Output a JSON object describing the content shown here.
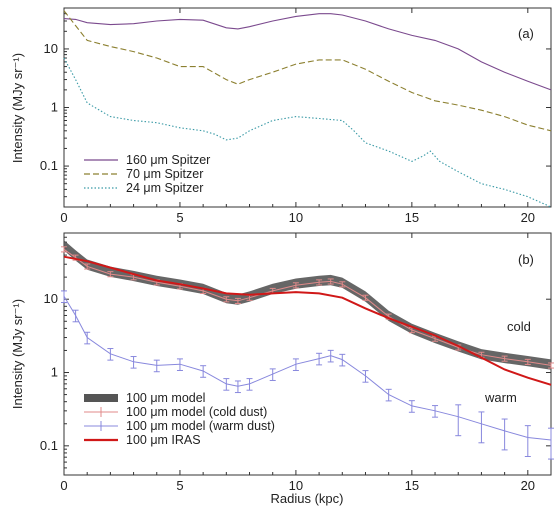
{
  "chart_data": [
    {
      "id": "a",
      "type": "line",
      "panel_label": "(a)",
      "ylabel": "Intensity (MJy sr⁻¹)",
      "xlabel": "",
      "xlim": [
        0,
        21
      ],
      "ylim": [
        0.02,
        50
      ],
      "yscale": "log",
      "xticks": [
        "0",
        "5",
        "10",
        "15",
        "20"
      ],
      "yticks": [
        "0.1",
        "1",
        "10"
      ],
      "legend_position": "bottom-left",
      "series": [
        {
          "name": "160 μm Spitzer",
          "style": "solid",
          "color": "#7b4a8e",
          "x": [
            0,
            0.5,
            1,
            2,
            3,
            4,
            5,
            6,
            7,
            7.5,
            8,
            9,
            10,
            11,
            11.5,
            12,
            13,
            14,
            15,
            16,
            17,
            18,
            19,
            20,
            21
          ],
          "y": [
            33,
            32,
            28,
            26,
            27,
            30,
            32,
            31,
            23,
            22,
            24,
            30,
            36,
            40,
            40,
            38,
            30,
            22,
            17,
            14,
            10,
            6,
            4,
            2.8,
            2.0
          ]
        },
        {
          "name": "70 μm Spitzer",
          "style": "dashed",
          "color": "#8c8030",
          "x": [
            0,
            0.5,
            1,
            2,
            3,
            4,
            5,
            6,
            7,
            7.5,
            8,
            9,
            10,
            11,
            12,
            13,
            14,
            15,
            16,
            17,
            18,
            19,
            20,
            21
          ],
          "y": [
            45,
            25,
            14,
            11,
            9,
            7,
            5,
            5,
            3,
            2.5,
            3,
            4,
            5.5,
            6.5,
            6.5,
            4.5,
            2.8,
            1.8,
            1.3,
            1.1,
            0.9,
            0.7,
            0.5,
            0.4
          ]
        },
        {
          "name": "24 μm Spitzer",
          "style": "dotted",
          "color": "#3a9aa6",
          "x": [
            0,
            0.5,
            1,
            2,
            3,
            4,
            5,
            6,
            6.5,
            7,
            7.5,
            8,
            9,
            10,
            11,
            12,
            12.5,
            13,
            14,
            15,
            15.5,
            15.8,
            16.2,
            17,
            18,
            19,
            20,
            21
          ],
          "y": [
            7,
            3,
            1.2,
            0.7,
            0.6,
            0.55,
            0.45,
            0.4,
            0.35,
            0.28,
            0.3,
            0.4,
            0.6,
            0.7,
            0.65,
            0.6,
            0.4,
            0.25,
            0.18,
            0.12,
            0.15,
            0.18,
            0.12,
            0.08,
            0.05,
            0.04,
            0.03,
            0.02
          ]
        }
      ]
    },
    {
      "id": "b",
      "type": "line",
      "panel_label": "(b)",
      "ylabel": "Intensity (MJy sr⁻¹)",
      "xlabel": "Radius (kpc)",
      "xlim": [
        0,
        21
      ],
      "ylim": [
        0.04,
        80
      ],
      "yscale": "log",
      "xticks": [
        "0",
        "5",
        "10",
        "15",
        "20"
      ],
      "yticks": [
        "0.1",
        "1",
        "10"
      ],
      "legend_position": "bottom-left",
      "annotations": [
        "cold",
        "warm"
      ],
      "series": [
        {
          "name": "100 μm model",
          "style": "band",
          "color": "#555555",
          "x": [
            0,
            0.5,
            1,
            2,
            3,
            4,
            5,
            6,
            7,
            7.5,
            8,
            9,
            10,
            11,
            11.5,
            12,
            13,
            14,
            15,
            16,
            17,
            18,
            19,
            20,
            21
          ],
          "y": [
            55,
            40,
            30,
            24,
            21,
            18,
            16,
            14,
            10.5,
            10,
            11,
            14,
            16.5,
            18,
            18.5,
            17,
            11,
            6,
            4,
            3,
            2.3,
            1.8,
            1.6,
            1.45,
            1.3
          ],
          "err_frac": 0.16
        },
        {
          "name": "100 μm model (cold dust)",
          "style": "errorbar",
          "color": "#e08a8a",
          "x": [
            0,
            0.5,
            1,
            2,
            3,
            4,
            5,
            6,
            7,
            7.5,
            8,
            9,
            10,
            11,
            11.5,
            12,
            13,
            14,
            15,
            16,
            17,
            18,
            19,
            20,
            21
          ],
          "y": [
            48,
            37,
            28,
            22,
            20,
            17,
            15,
            13,
            10,
            9.5,
            10.5,
            13,
            15.5,
            17,
            17.5,
            16,
            10.5,
            5.8,
            3.8,
            2.9,
            2.2,
            1.75,
            1.55,
            1.4,
            1.25
          ]
        },
        {
          "name": "100 μm model (warm dust)",
          "style": "errorbar",
          "color": "#8888dd",
          "x": [
            0,
            0.5,
            1,
            2,
            3,
            4,
            5,
            6,
            7,
            7.5,
            8,
            9,
            10,
            11,
            11.5,
            12,
            13,
            14,
            15,
            16,
            17,
            18,
            19,
            20,
            21
          ],
          "y": [
            11,
            6,
            3,
            1.8,
            1.4,
            1.25,
            1.3,
            1.05,
            0.7,
            0.65,
            0.7,
            0.95,
            1.3,
            1.55,
            1.7,
            1.5,
            0.9,
            0.5,
            0.35,
            0.3,
            0.25,
            0.2,
            0.16,
            0.13,
            0.12
          ]
        },
        {
          "name": "100 μm IRAS",
          "style": "solid",
          "color": "#d01818",
          "x": [
            0,
            1,
            2,
            3,
            4,
            5,
            6,
            7,
            8,
            9,
            10,
            11,
            12,
            13,
            14,
            15,
            16,
            17,
            18,
            19,
            20,
            21
          ],
          "y": [
            38,
            33,
            27,
            22,
            18,
            16,
            14,
            12,
            11.5,
            12,
            12.5,
            12,
            10.5,
            7.5,
            5.5,
            4.2,
            3.2,
            2.3,
            1.6,
            1.1,
            0.85,
            0.68
          ]
        }
      ]
    }
  ]
}
